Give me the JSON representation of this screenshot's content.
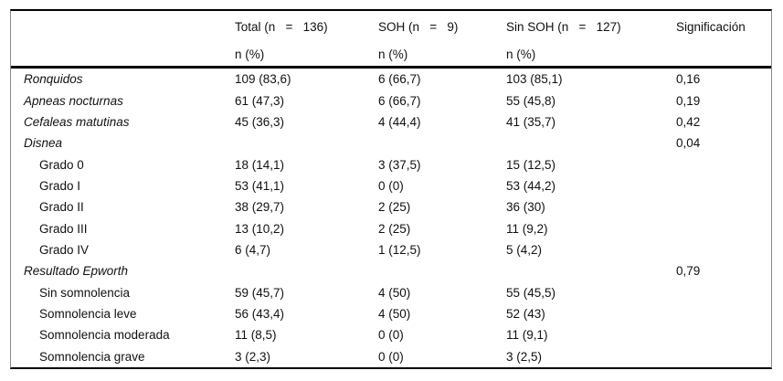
{
  "table": {
    "columns": [
      {
        "label": "",
        "sublabel": ""
      },
      {
        "label": "Total (n   =   136)",
        "sublabel": "n (%)"
      },
      {
        "label": "SOH (n   =   9)",
        "sublabel": "n (%)"
      },
      {
        "label": "Sin SOH (n   =   127)",
        "sublabel": "n (%)"
      },
      {
        "label": "Significación",
        "sublabel": ""
      }
    ],
    "rows": [
      {
        "label": "Ronquidos",
        "total": "109 (83,6)",
        "soh": "6 (66,7)",
        "sin_soh": "103 (85,1)",
        "sig": "0,16"
      },
      {
        "label": "Apneas nocturnas",
        "total": "61 (47,3)",
        "soh": "6 (66,7)",
        "sin_soh": "55 (45,8)",
        "sig": "0,19"
      },
      {
        "label": "Cefaleas matutinas",
        "total": "45 (36,3)",
        "soh": "4 (44,4)",
        "sin_soh": "41 (35,7)",
        "sig": "0,42"
      },
      {
        "label": "Disnea",
        "total": "",
        "soh": "",
        "sin_soh": "",
        "sig": "0,04"
      },
      {
        "label": "Grado 0",
        "total": "18 (14,1)",
        "soh": "3 (37,5)",
        "sin_soh": "15 (12,5)",
        "sig": ""
      },
      {
        "label": "Grado I",
        "total": "53 (41,1)",
        "soh": "0 (0)",
        "sin_soh": "53 (44,2)",
        "sig": ""
      },
      {
        "label": "Grado II",
        "total": "38 (29,7)",
        "soh": "2 (25)",
        "sin_soh": "36 (30)",
        "sig": ""
      },
      {
        "label": "Grado III",
        "total": "13 (10,2)",
        "soh": "2 (25)",
        "sin_soh": "11 (9,2)",
        "sig": ""
      },
      {
        "label": "Grado IV",
        "total": "6 (4,7)",
        "soh": "1 (12,5)",
        "sin_soh": "5 (4,2)",
        "sig": ""
      },
      {
        "label": "Resultado Epworth",
        "total": "",
        "soh": "",
        "sin_soh": "",
        "sig": "0,79"
      },
      {
        "label": "Sin somnolencia",
        "total": "59 (45,7)",
        "soh": "4 (50)",
        "sin_soh": "55 (45,5)",
        "sig": ""
      },
      {
        "label": "Somnolencia leve",
        "total": "56 (43,4)",
        "soh": "4 (50)",
        "sin_soh": "52 (43)",
        "sig": ""
      },
      {
        "label": "Somnolencia moderada",
        "total": "11 (8,5)",
        "soh": "0 (0)",
        "sin_soh": "11 (9,1)",
        "sig": ""
      },
      {
        "label": "Somnolencia grave",
        "total": "3 (2,3)",
        "soh": "0 (0)",
        "sin_soh": "3 (2,5)",
        "sig": ""
      }
    ],
    "colors": {
      "rule": "#000000",
      "outer_border": "#8a8a8a",
      "text": "#111111",
      "background": "#ffffff"
    }
  }
}
